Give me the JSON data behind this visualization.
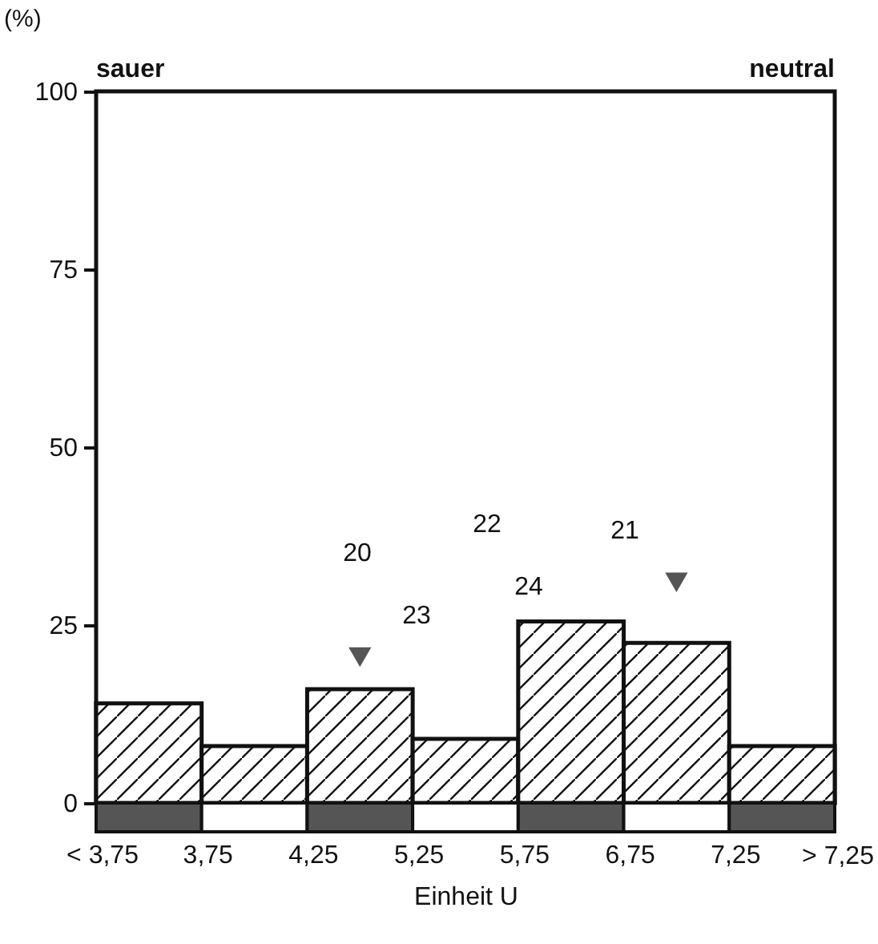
{
  "chart_data": {
    "type": "bar",
    "xlabel": "Einheit U",
    "ylabel": "(%)",
    "categories": [
      "< 3,75",
      "3,75",
      "4,25",
      "5,25",
      "5,75",
      "6,75",
      "7,25"
    ],
    "values": [
      14,
      8,
      16,
      9,
      25.5,
      22.5,
      8
    ],
    "color": "#111111",
    "ylim": [
      0,
      100
    ],
    "yticks": [
      0,
      25,
      50,
      75,
      100
    ],
    "series": [
      {
        "type": "scatter",
        "color": "#555555",
        "marker": "triangle",
        "x": [
          "4,25",
          "6,75"
        ],
        "values": [
          20.5,
          31
        ]
      }
    ],
    "annotations": [
      "sauer",
      "neutral",
      "> 7,25",
      "20",
      "23",
      "22",
      "24",
      "21"
    ]
  }
}
